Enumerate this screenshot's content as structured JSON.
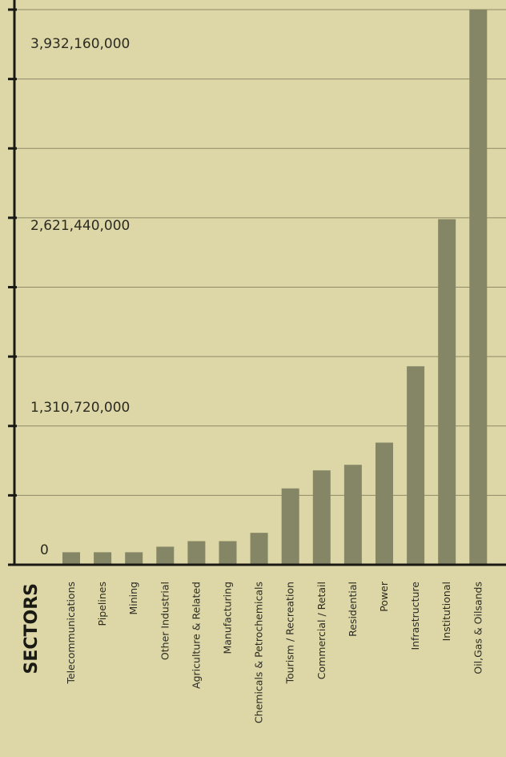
{
  "chart_data": {
    "type": "bar",
    "xlabel": "SECTORS",
    "ylabel": "",
    "ylim": [
      0,
      4000000000
    ],
    "ytick_labels": [
      {
        "value": 0,
        "label": "0"
      },
      {
        "value": 1310720000,
        "label": "1,310,720,000"
      },
      {
        "value": 2621440000,
        "label": "2,621,440,000"
      },
      {
        "value": 3932160000,
        "label": "3,932,160,000"
      }
    ],
    "ytick_marks": [
      0,
      500000000,
      1000000000,
      1500000000,
      2000000000,
      2500000000,
      3000000000,
      3500000000,
      4000000000
    ],
    "grid": true,
    "categories": [
      "Telecommunications",
      "Pipelines",
      "Mining",
      "Other Industrial",
      "Agriculture & Related",
      "Manufacturing",
      "Chemicals & Petrochemicals",
      "Tourism / Recreation",
      "Commercial / Retail",
      "Residential",
      "Power",
      "Infrastructure",
      "Institutional",
      "Oil,Gas & Oilsands"
    ],
    "values": [
      90000000,
      90000000,
      90000000,
      130000000,
      170000000,
      170000000,
      230000000,
      550000000,
      680000000,
      720000000,
      880000000,
      1430000000,
      2490000000,
      4000000000
    ],
    "colors": {
      "background": "#ddd6a6",
      "bar": "#858666",
      "grid": "#8f8a68",
      "axis": "#1a1a14"
    }
  }
}
